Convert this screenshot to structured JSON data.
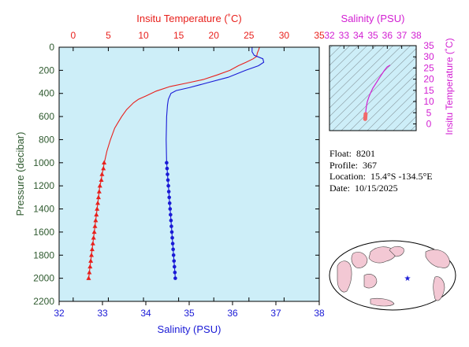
{
  "colors": {
    "temperature": "#e8201c",
    "salinity": "#1a1ad6",
    "inset": "#d21ed2",
    "inset_trace": "#f06a6a",
    "panel_bg": "#cdeef8",
    "pressure_axis": "#2f5a2f",
    "land": "#f3c8d4",
    "map_water": "#ffffff",
    "float_marker": "#1a1ad6"
  },
  "info": {
    "float_label": "Float:",
    "float_value": "8201",
    "profile_label": "Profile:",
    "profile_value": "367",
    "location_label": "Location:",
    "location_value": "15.4°S  -134.5°E",
    "date_label": "Date:",
    "date_value": "10/15/2025"
  },
  "chart_data": [
    {
      "type": "line",
      "title": "",
      "top_axis_label": "Insitu Temperature (˚C)",
      "bottom_axis_label": "Salinity (PSU)",
      "left_axis_label": "Pressure (decibar)",
      "temperature_axis": {
        "range": [
          -2,
          35
        ],
        "ticks": [
          "0",
          "5",
          "10",
          "15",
          "20",
          "25",
          "30",
          "35"
        ]
      },
      "salinity_axis": {
        "range": [
          32,
          38
        ],
        "ticks": [
          "32",
          "33",
          "34",
          "35",
          "36",
          "37",
          "38"
        ]
      },
      "pressure_axis": {
        "range": [
          0,
          2200
        ],
        "inverted": true,
        "ticks": [
          "0",
          "200",
          "400",
          "600",
          "800",
          "1000",
          "1200",
          "1400",
          "1600",
          "1800",
          "2000",
          "2200"
        ]
      },
      "grid": false,
      "series": [
        {
          "name": "Insitu Temperature (˚C)",
          "axis": "temperature",
          "marker": "triangle",
          "points": [
            [
              26.5,
              0
            ],
            [
              26.4,
              20
            ],
            [
              26.2,
              50
            ],
            [
              26.1,
              80
            ],
            [
              25.6,
              100
            ],
            [
              24.6,
              130
            ],
            [
              23.5,
              160
            ],
            [
              22.3,
              200
            ],
            [
              20.5,
              240
            ],
            [
              18.5,
              280
            ],
            [
              16.2,
              310
            ],
            [
              13.8,
              340
            ],
            [
              11.8,
              380
            ],
            [
              10.4,
              420
            ],
            [
              9.3,
              450
            ],
            [
              8.6,
              480
            ],
            [
              7.6,
              540
            ],
            [
              6.9,
              600
            ],
            [
              6.4,
              650
            ],
            [
              5.9,
              700
            ],
            [
              5.3,
              800
            ],
            [
              4.8,
              900
            ],
            [
              4.5,
              980
            ],
            [
              4.4,
              1000
            ],
            [
              4.3,
              1050
            ],
            [
              4.1,
              1100
            ],
            [
              4.0,
              1150
            ],
            [
              3.8,
              1200
            ],
            [
              3.7,
              1250
            ],
            [
              3.6,
              1300
            ],
            [
              3.5,
              1350
            ],
            [
              3.4,
              1400
            ],
            [
              3.3,
              1450
            ],
            [
              3.2,
              1500
            ],
            [
              3.1,
              1550
            ],
            [
              3.0,
              1600
            ],
            [
              2.9,
              1650
            ],
            [
              2.8,
              1700
            ],
            [
              2.7,
              1750
            ],
            [
              2.6,
              1800
            ],
            [
              2.5,
              1850
            ],
            [
              2.4,
              1900
            ],
            [
              2.3,
              1950
            ],
            [
              2.2,
              2000
            ]
          ],
          "marker_from_pressure": 1000
        },
        {
          "name": "Salinity (PSU)",
          "axis": "salinity",
          "marker": "circle",
          "points": [
            [
              36.45,
              0
            ],
            [
              36.45,
              40
            ],
            [
              36.5,
              70
            ],
            [
              36.7,
              100
            ],
            [
              36.72,
              130
            ],
            [
              36.6,
              160
            ],
            [
              36.3,
              200
            ],
            [
              35.9,
              260
            ],
            [
              35.4,
              310
            ],
            [
              35.0,
              350
            ],
            [
              34.7,
              375
            ],
            [
              34.58,
              400
            ],
            [
              34.52,
              450
            ],
            [
              34.5,
              500
            ],
            [
              34.48,
              600
            ],
            [
              34.47,
              800
            ],
            [
              34.48,
              1000
            ],
            [
              34.49,
              1050
            ],
            [
              34.5,
              1100
            ],
            [
              34.51,
              1150
            ],
            [
              34.52,
              1200
            ],
            [
              34.53,
              1250
            ],
            [
              34.54,
              1300
            ],
            [
              34.55,
              1350
            ],
            [
              34.56,
              1400
            ],
            [
              34.57,
              1450
            ],
            [
              34.58,
              1500
            ],
            [
              34.59,
              1550
            ],
            [
              34.6,
              1600
            ],
            [
              34.61,
              1650
            ],
            [
              34.62,
              1700
            ],
            [
              34.63,
              1750
            ],
            [
              34.64,
              1800
            ],
            [
              34.65,
              1850
            ],
            [
              34.66,
              1900
            ],
            [
              34.67,
              1950
            ],
            [
              34.68,
              2000
            ]
          ],
          "marker_from_pressure": 1000
        }
      ]
    },
    {
      "type": "line",
      "title": "",
      "top_axis_label": "Salinity (PSU)",
      "right_axis_label": "Insitu Temperature (˚C)",
      "x_axis": {
        "range": [
          32,
          38
        ],
        "ticks": [
          "32",
          "33",
          "34",
          "35",
          "36",
          "37",
          "38"
        ]
      },
      "y_axis": {
        "range": [
          -3,
          35
        ],
        "ticks": [
          "0",
          "5",
          "10",
          "15",
          "20",
          "25",
          "30",
          "35"
        ]
      },
      "series": [
        {
          "name": "",
          "points": [
            [
              34.47,
              2.2
            ],
            [
              34.48,
              2.8
            ],
            [
              34.49,
              3.6
            ],
            [
              34.5,
              4.4
            ],
            [
              34.52,
              6.0
            ],
            [
              34.56,
              8.0
            ],
            [
              34.62,
              10.0
            ],
            [
              34.72,
              12.0
            ],
            [
              34.85,
              14.0
            ],
            [
              35.0,
              16.0
            ],
            [
              35.2,
              18.0
            ],
            [
              35.4,
              20.0
            ],
            [
              35.6,
              22.0
            ],
            [
              35.8,
              24.0
            ],
            [
              36.0,
              25.5
            ],
            [
              36.2,
              26.3
            ]
          ]
        }
      ]
    }
  ]
}
